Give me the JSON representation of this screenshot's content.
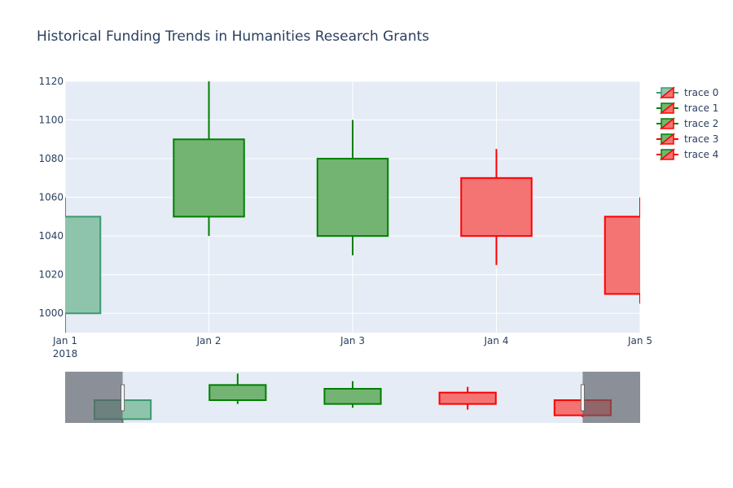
{
  "chart_data": {
    "type": "candlestick",
    "title": "Historical Funding Trends in Humanities Research Grants",
    "xlabel": "",
    "ylabel": "",
    "x_ticks": [
      {
        "date": "2018-01-01",
        "label": "Jan 1",
        "sublabel": "2018"
      },
      {
        "date": "2018-01-02",
        "label": "Jan 2",
        "sublabel": ""
      },
      {
        "date": "2018-01-03",
        "label": "Jan 3",
        "sublabel": ""
      },
      {
        "date": "2018-01-04",
        "label": "Jan 4",
        "sublabel": ""
      },
      {
        "date": "2018-01-05",
        "label": "Jan 5",
        "sublabel": ""
      }
    ],
    "xlim": [
      "2018-01-01",
      "2018-01-05"
    ],
    "y_ticks": [
      1000,
      1020,
      1040,
      1060,
      1080,
      1100,
      1120
    ],
    "ylim": [
      990,
      1120
    ],
    "grid": true,
    "legend_position": "right",
    "plot_bgcolor": "#e5ecf6",
    "increasing_color": "#008000",
    "increasing_fill": "#73b473",
    "decreasing_color": "#ff0000",
    "decreasing_fill": "#f47474",
    "series": [
      {
        "name": "trace 0",
        "date": "2018-01-01",
        "open": 1000,
        "high": 1060,
        "low": 990,
        "close": 1050,
        "line_color": "#3d9970",
        "fill_color": "#8fc4ac",
        "style": "increasing-teal"
      },
      {
        "name": "trace 1",
        "date": "2018-01-02",
        "open": 1050,
        "high": 1120,
        "low": 1040,
        "close": 1090,
        "line_color": "#008000",
        "fill_color": "#73b473",
        "style": "increasing"
      },
      {
        "name": "trace 2",
        "date": "2018-01-03",
        "open": 1040,
        "high": 1100,
        "low": 1030,
        "close": 1080,
        "line_color": "#008000",
        "fill_color": "#73b473",
        "style": "increasing"
      },
      {
        "name": "trace 3",
        "date": "2018-01-04",
        "open": 1070,
        "high": 1085,
        "low": 1025,
        "close": 1040,
        "line_color": "#ff0000",
        "fill_color": "#f47474",
        "style": "decreasing"
      },
      {
        "name": "trace 4",
        "date": "2018-01-05",
        "open": 1050,
        "high": 1060,
        "low": 1005,
        "close": 1010,
        "line_color": "#ff0000",
        "fill_color": "#f47474",
        "style": "decreasing"
      }
    ],
    "rangeslider": {
      "visible": true,
      "selected_range": [
        "2018-01-01",
        "2018-01-05"
      ]
    }
  }
}
